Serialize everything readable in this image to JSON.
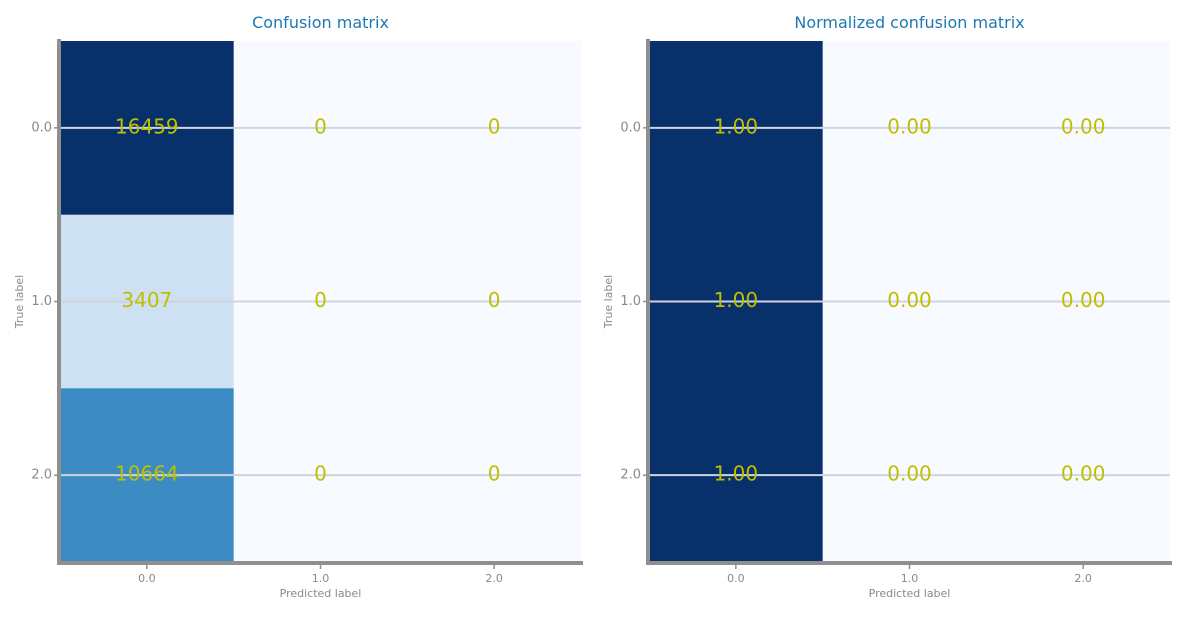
{
  "chart_data": [
    {
      "type": "heatmap",
      "title": "Confusion matrix",
      "xlabel": "Predicted label",
      "ylabel": "True label",
      "x_categories": [
        "0.0",
        "1.0",
        "2.0"
      ],
      "y_categories": [
        "0.0",
        "1.0",
        "2.0"
      ],
      "values": [
        [
          16459,
          0,
          0
        ],
        [
          3407,
          0,
          0
        ],
        [
          10664,
          0,
          0
        ]
      ],
      "cell_labels": [
        [
          "16459",
          "0",
          "0"
        ],
        [
          "3407",
          "0",
          "0"
        ],
        [
          "10664",
          "0",
          "0"
        ]
      ],
      "value_range": [
        0,
        16459
      ],
      "colormap": "Blues",
      "grid": true
    },
    {
      "type": "heatmap",
      "title": "Normalized confusion matrix",
      "xlabel": "Predicted label",
      "ylabel": "True label",
      "x_categories": [
        "0.0",
        "1.0",
        "2.0"
      ],
      "y_categories": [
        "0.0",
        "1.0",
        "2.0"
      ],
      "values": [
        [
          1.0,
          0.0,
          0.0
        ],
        [
          1.0,
          0.0,
          0.0
        ],
        [
          1.0,
          0.0,
          0.0
        ]
      ],
      "cell_labels": [
        [
          "1.00",
          "0.00",
          "0.00"
        ],
        [
          "1.00",
          "0.00",
          "0.00"
        ],
        [
          "1.00",
          "0.00",
          "0.00"
        ]
      ],
      "value_range": [
        0,
        1
      ],
      "colormap": "Blues",
      "grid": true
    }
  ],
  "colors": {
    "title": "#1f77b4",
    "cell_text": "#bfbf00",
    "axis": "#8f8f8f",
    "tick_text": "#8a8a8a",
    "grid": "#d0d4dc",
    "colormap_low": "#f7fbff",
    "colormap_high": "#08306b"
  }
}
